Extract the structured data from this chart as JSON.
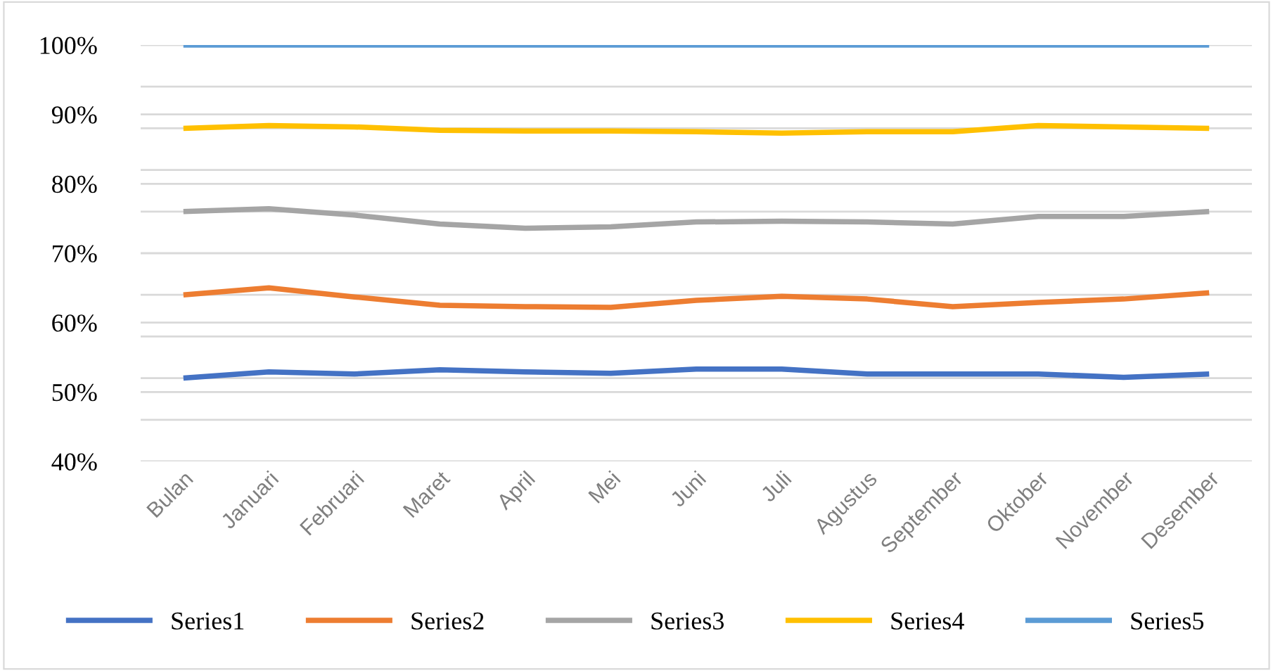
{
  "chart_data": {
    "type": "line",
    "categories": [
      "Bulan",
      "Januari",
      "Februari",
      "Maret",
      "April",
      "Mei",
      "Juni",
      "Juli",
      "Agustus",
      "September",
      "Oktober",
      "November",
      "Desember"
    ],
    "series": [
      {
        "name": "Series1",
        "color": "#4472c4",
        "values": [
          52.0,
          52.9,
          52.6,
          53.2,
          52.9,
          52.7,
          53.3,
          53.3,
          52.6,
          52.6,
          52.6,
          52.1,
          52.6
        ]
      },
      {
        "name": "Series2",
        "color": "#ed7d31",
        "values": [
          64.0,
          65.0,
          63.7,
          62.5,
          62.3,
          62.2,
          63.2,
          63.8,
          63.4,
          62.3,
          62.9,
          63.4,
          64.3
        ]
      },
      {
        "name": "Series3",
        "color": "#a5a5a5",
        "values": [
          76.0,
          76.4,
          75.5,
          74.2,
          73.6,
          73.8,
          74.5,
          74.6,
          74.5,
          74.2,
          75.3,
          75.3,
          76.0
        ]
      },
      {
        "name": "Series4",
        "color": "#ffc000",
        "values": [
          88.0,
          88.4,
          88.2,
          87.7,
          87.6,
          87.6,
          87.5,
          87.3,
          87.5,
          87.5,
          88.4,
          88.2,
          88.0
        ]
      },
      {
        "name": "Series5",
        "color": "#5b9bd5",
        "values": [
          100,
          100,
          100,
          100,
          100,
          100,
          100,
          100,
          100,
          100,
          100,
          100,
          100
        ]
      }
    ],
    "ylim": [
      40,
      100
    ],
    "yticks": [
      {
        "value": 40,
        "label": "40%"
      },
      {
        "value": 46,
        "label": null
      },
      {
        "value": 50,
        "label": "50%"
      },
      {
        "value": 52,
        "label": null
      },
      {
        "value": 58,
        "label": null
      },
      {
        "value": 60,
        "label": "60%"
      },
      {
        "value": 64,
        "label": null
      },
      {
        "value": 70,
        "label": "70%"
      },
      {
        "value": 76,
        "label": null
      },
      {
        "value": 80,
        "label": "80%"
      },
      {
        "value": 82,
        "label": null
      },
      {
        "value": 88,
        "label": null
      },
      {
        "value": 90,
        "label": "90%"
      },
      {
        "value": 94,
        "label": null
      },
      {
        "value": 100,
        "label": "100%"
      }
    ],
    "grid": "y",
    "legend": "bottom",
    "marker": "none",
    "line_style": "solid"
  }
}
